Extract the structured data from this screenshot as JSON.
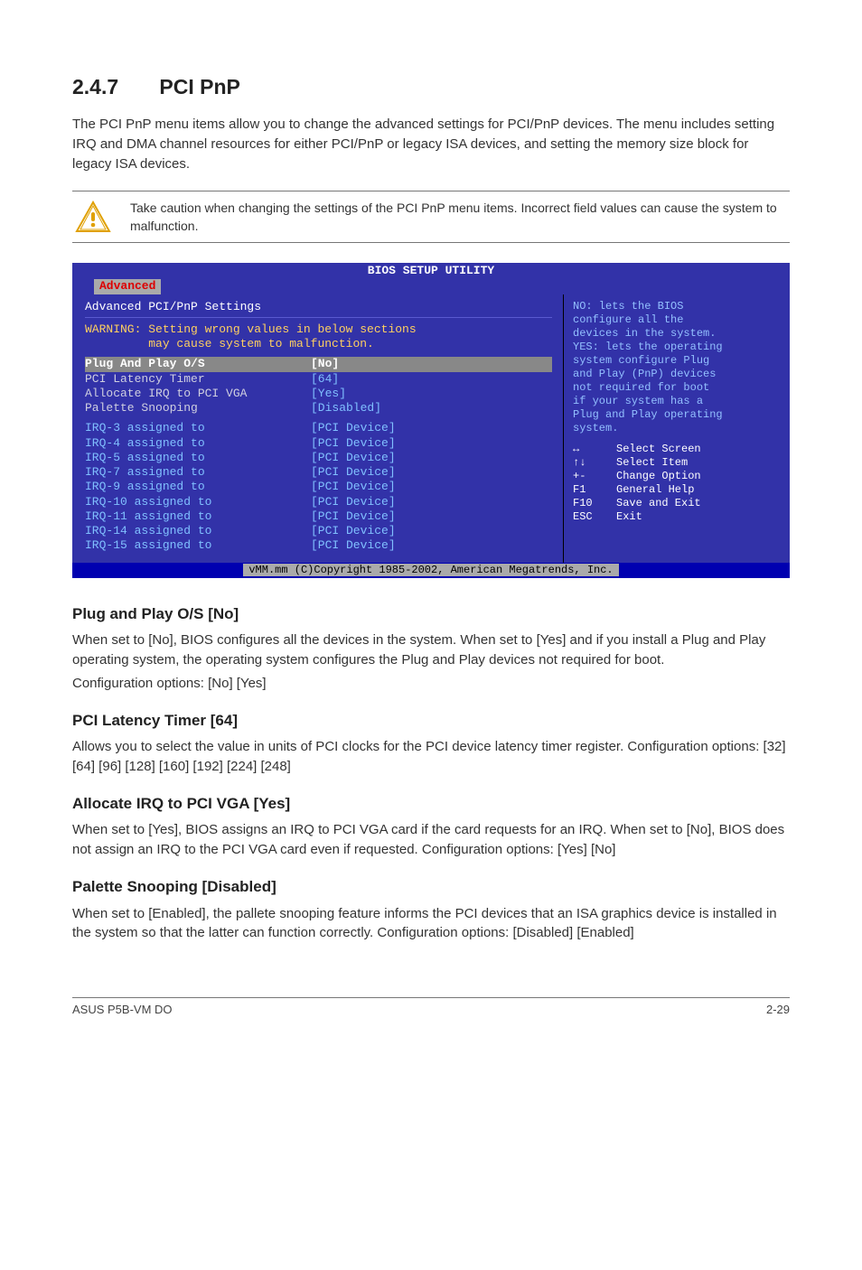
{
  "heading": {
    "num": "2.4.7",
    "title": "PCI PnP"
  },
  "intro": "The PCI PnP menu items allow you to change the advanced settings for PCI/PnP devices. The menu includes setting IRQ and DMA channel resources for either PCI/PnP or legacy ISA devices, and setting the memory size block for legacy ISA devices.",
  "note": "Take caution when changing the settings of the PCI PnP menu items. Incorrect field values can cause the system to malfunction.",
  "bios": {
    "title": "BIOS SETUP UTILITY",
    "tab": "Advanced",
    "panel_title": "Advanced PCI/PnP Settings",
    "warning_l1": "WARNING: Setting wrong values in below sections",
    "warning_l2": "may cause system to malfunction.",
    "rows": [
      {
        "label": "Plug And Play O/S",
        "value": "[No]",
        "sel": true
      },
      {
        "label": "PCI Latency Timer",
        "value": "[64]"
      },
      {
        "label": "Allocate IRQ to PCI VGA",
        "value": "[Yes]"
      },
      {
        "label": "Palette Snooping",
        "value": "[Disabled]"
      }
    ],
    "irqs": [
      {
        "label": "IRQ-3 assigned to",
        "value": "[PCI Device]"
      },
      {
        "label": "IRQ-4 assigned to",
        "value": "[PCI Device]"
      },
      {
        "label": "IRQ-5 assigned to",
        "value": "[PCI Device]"
      },
      {
        "label": "IRQ-7 assigned to",
        "value": "[PCI Device]"
      },
      {
        "label": "IRQ-9 assigned to",
        "value": "[PCI Device]"
      },
      {
        "label": "IRQ-10 assigned to",
        "value": "[PCI Device]"
      },
      {
        "label": "IRQ-11 assigned to",
        "value": "[PCI Device]"
      },
      {
        "label": "IRQ-14 assigned to",
        "value": "[PCI Device]"
      },
      {
        "label": "IRQ-15 assigned to",
        "value": "[PCI Device]"
      }
    ],
    "help": [
      "NO: lets the BIOS",
      "configure all the",
      "devices in the system.",
      "YES: lets the operating",
      "system configure Plug",
      "and Play (PnP) devices",
      "not required for boot",
      "if your system has a",
      "Plug and Play operating",
      "system."
    ],
    "keys": [
      {
        "k": "↔",
        "t": "Select Screen"
      },
      {
        "k": "↑↓",
        "t": "Select Item"
      },
      {
        "k": "+-",
        "t": "Change Option"
      },
      {
        "k": "F1",
        "t": "General Help"
      },
      {
        "k": "F10",
        "t": "Save and Exit"
      },
      {
        "k": "ESC",
        "t": "Exit"
      }
    ],
    "copyright": "vMM.mm (C)Copyright 1985-2002, American Megatrends, Inc."
  },
  "sections": [
    {
      "h": "Plug and Play O/S [No]",
      "p": "When set to [No], BIOS configures all the devices in the system. When set to [Yes] and if you install a Plug and Play operating system, the operating system configures the Plug and Play devices not required for boot.\nConfiguration options: [No] [Yes]"
    },
    {
      "h": "PCI Latency Timer [64]",
      "p": "Allows you to select the value in units of PCI clocks for the PCI device latency timer register. Configuration options: [32] [64] [96] [128] [160] [192] [224] [248]"
    },
    {
      "h": "Allocate IRQ to PCI VGA [Yes]",
      "p": "When set to [Yes], BIOS assigns an IRQ to PCI VGA card if the card requests for an IRQ. When set to [No], BIOS does not assign an IRQ to the PCI VGA card even if requested. Configuration options: [Yes] [No]"
    },
    {
      "h": "Palette Snooping [Disabled]",
      "p": "When set to [Enabled], the pallete snooping feature informs the PCI devices that an ISA graphics device is installed in the system so that the latter can function correctly. Configuration options: [Disabled] [Enabled]"
    }
  ],
  "footer": {
    "left": "ASUS P5B-VM DO",
    "right": "2-29"
  }
}
